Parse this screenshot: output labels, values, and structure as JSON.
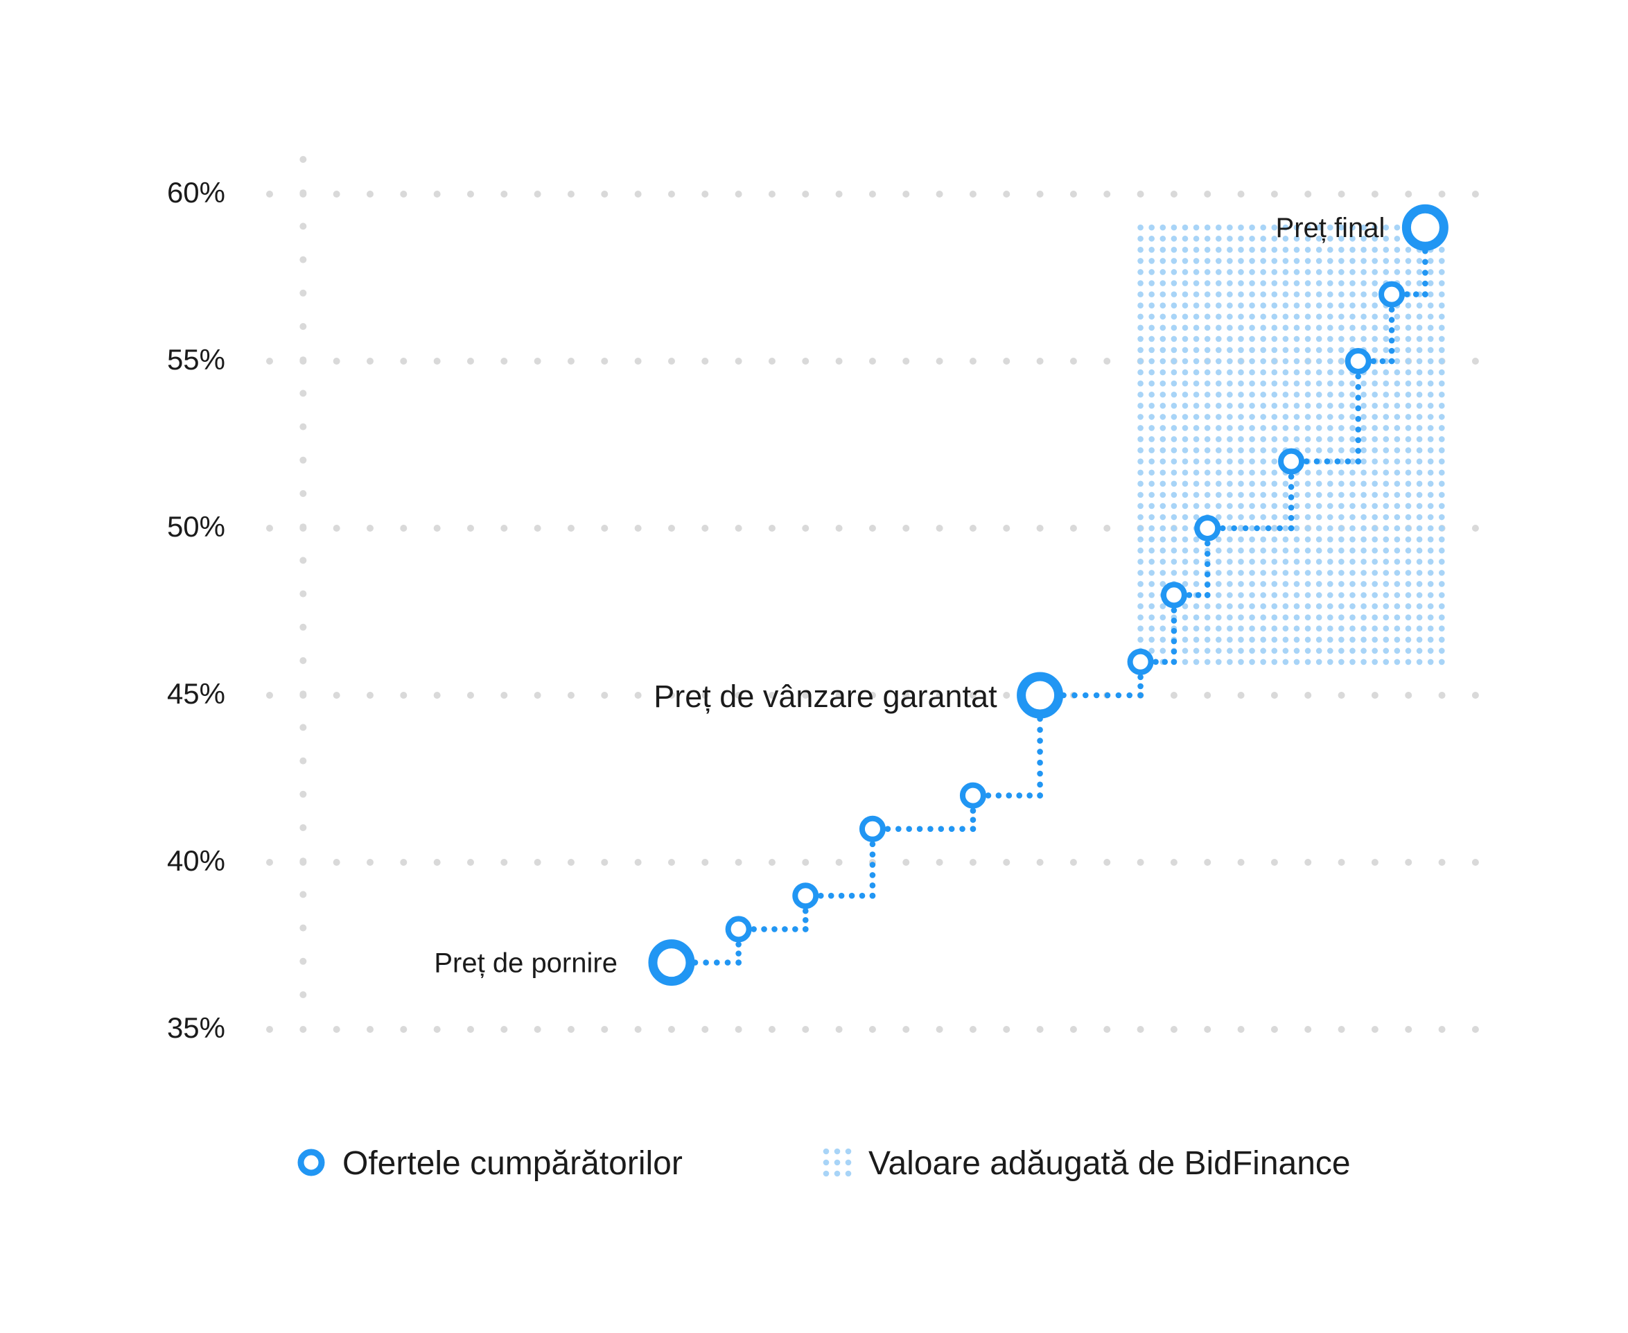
{
  "chart_data": {
    "type": "scatter",
    "yticks": [
      "35%",
      "40%",
      "45%",
      "50%",
      "55%",
      "60%"
    ],
    "ylim": [
      35,
      60
    ],
    "grid": true,
    "series": [
      {
        "name": "Ofertele cumpărătorilor",
        "color": "#2196f3",
        "points": [
          {
            "x": 12,
            "y": 37.0
          },
          {
            "x": 14,
            "y": 38.0
          },
          {
            "x": 16,
            "y": 39.0
          },
          {
            "x": 18,
            "y": 41.0
          },
          {
            "x": 21,
            "y": 42.0
          },
          {
            "x": 23,
            "y": 45.0
          },
          {
            "x": 26,
            "y": 46.0
          },
          {
            "x": 27,
            "y": 48.0
          },
          {
            "x": 28,
            "y": 50.0
          },
          {
            "x": 30.5,
            "y": 52.0
          },
          {
            "x": 32.5,
            "y": 55.0
          },
          {
            "x": 33.5,
            "y": 57.0
          },
          {
            "x": 34.5,
            "y": 59.0
          }
        ]
      }
    ],
    "annotations": [
      {
        "text": "Preț de pornire",
        "x": 12,
        "y": 37.0
      },
      {
        "text": "Preț de vânzare garantat",
        "x": 23,
        "y": 45.0
      },
      {
        "text": "Preț final",
        "x": 34.5,
        "y": 59.0
      }
    ],
    "added_value_region": {
      "name": "Valoare adăugată de BidFinance",
      "x": [
        26,
        35
      ],
      "y": [
        46,
        59
      ],
      "color": "#a8d4f7"
    },
    "legend": {
      "placement": "bottom",
      "items": [
        {
          "label": "Ofertele cumpărătorilor",
          "symbol": "ring-icon"
        },
        {
          "label": "Valoare adăugată de BidFinance",
          "symbol": "dot-grid-icon"
        }
      ]
    },
    "colors": {
      "accent": "#2196f3",
      "region": "#a8d4f7",
      "grid": "#d9d9d9",
      "text": "#1b1b1b"
    }
  }
}
